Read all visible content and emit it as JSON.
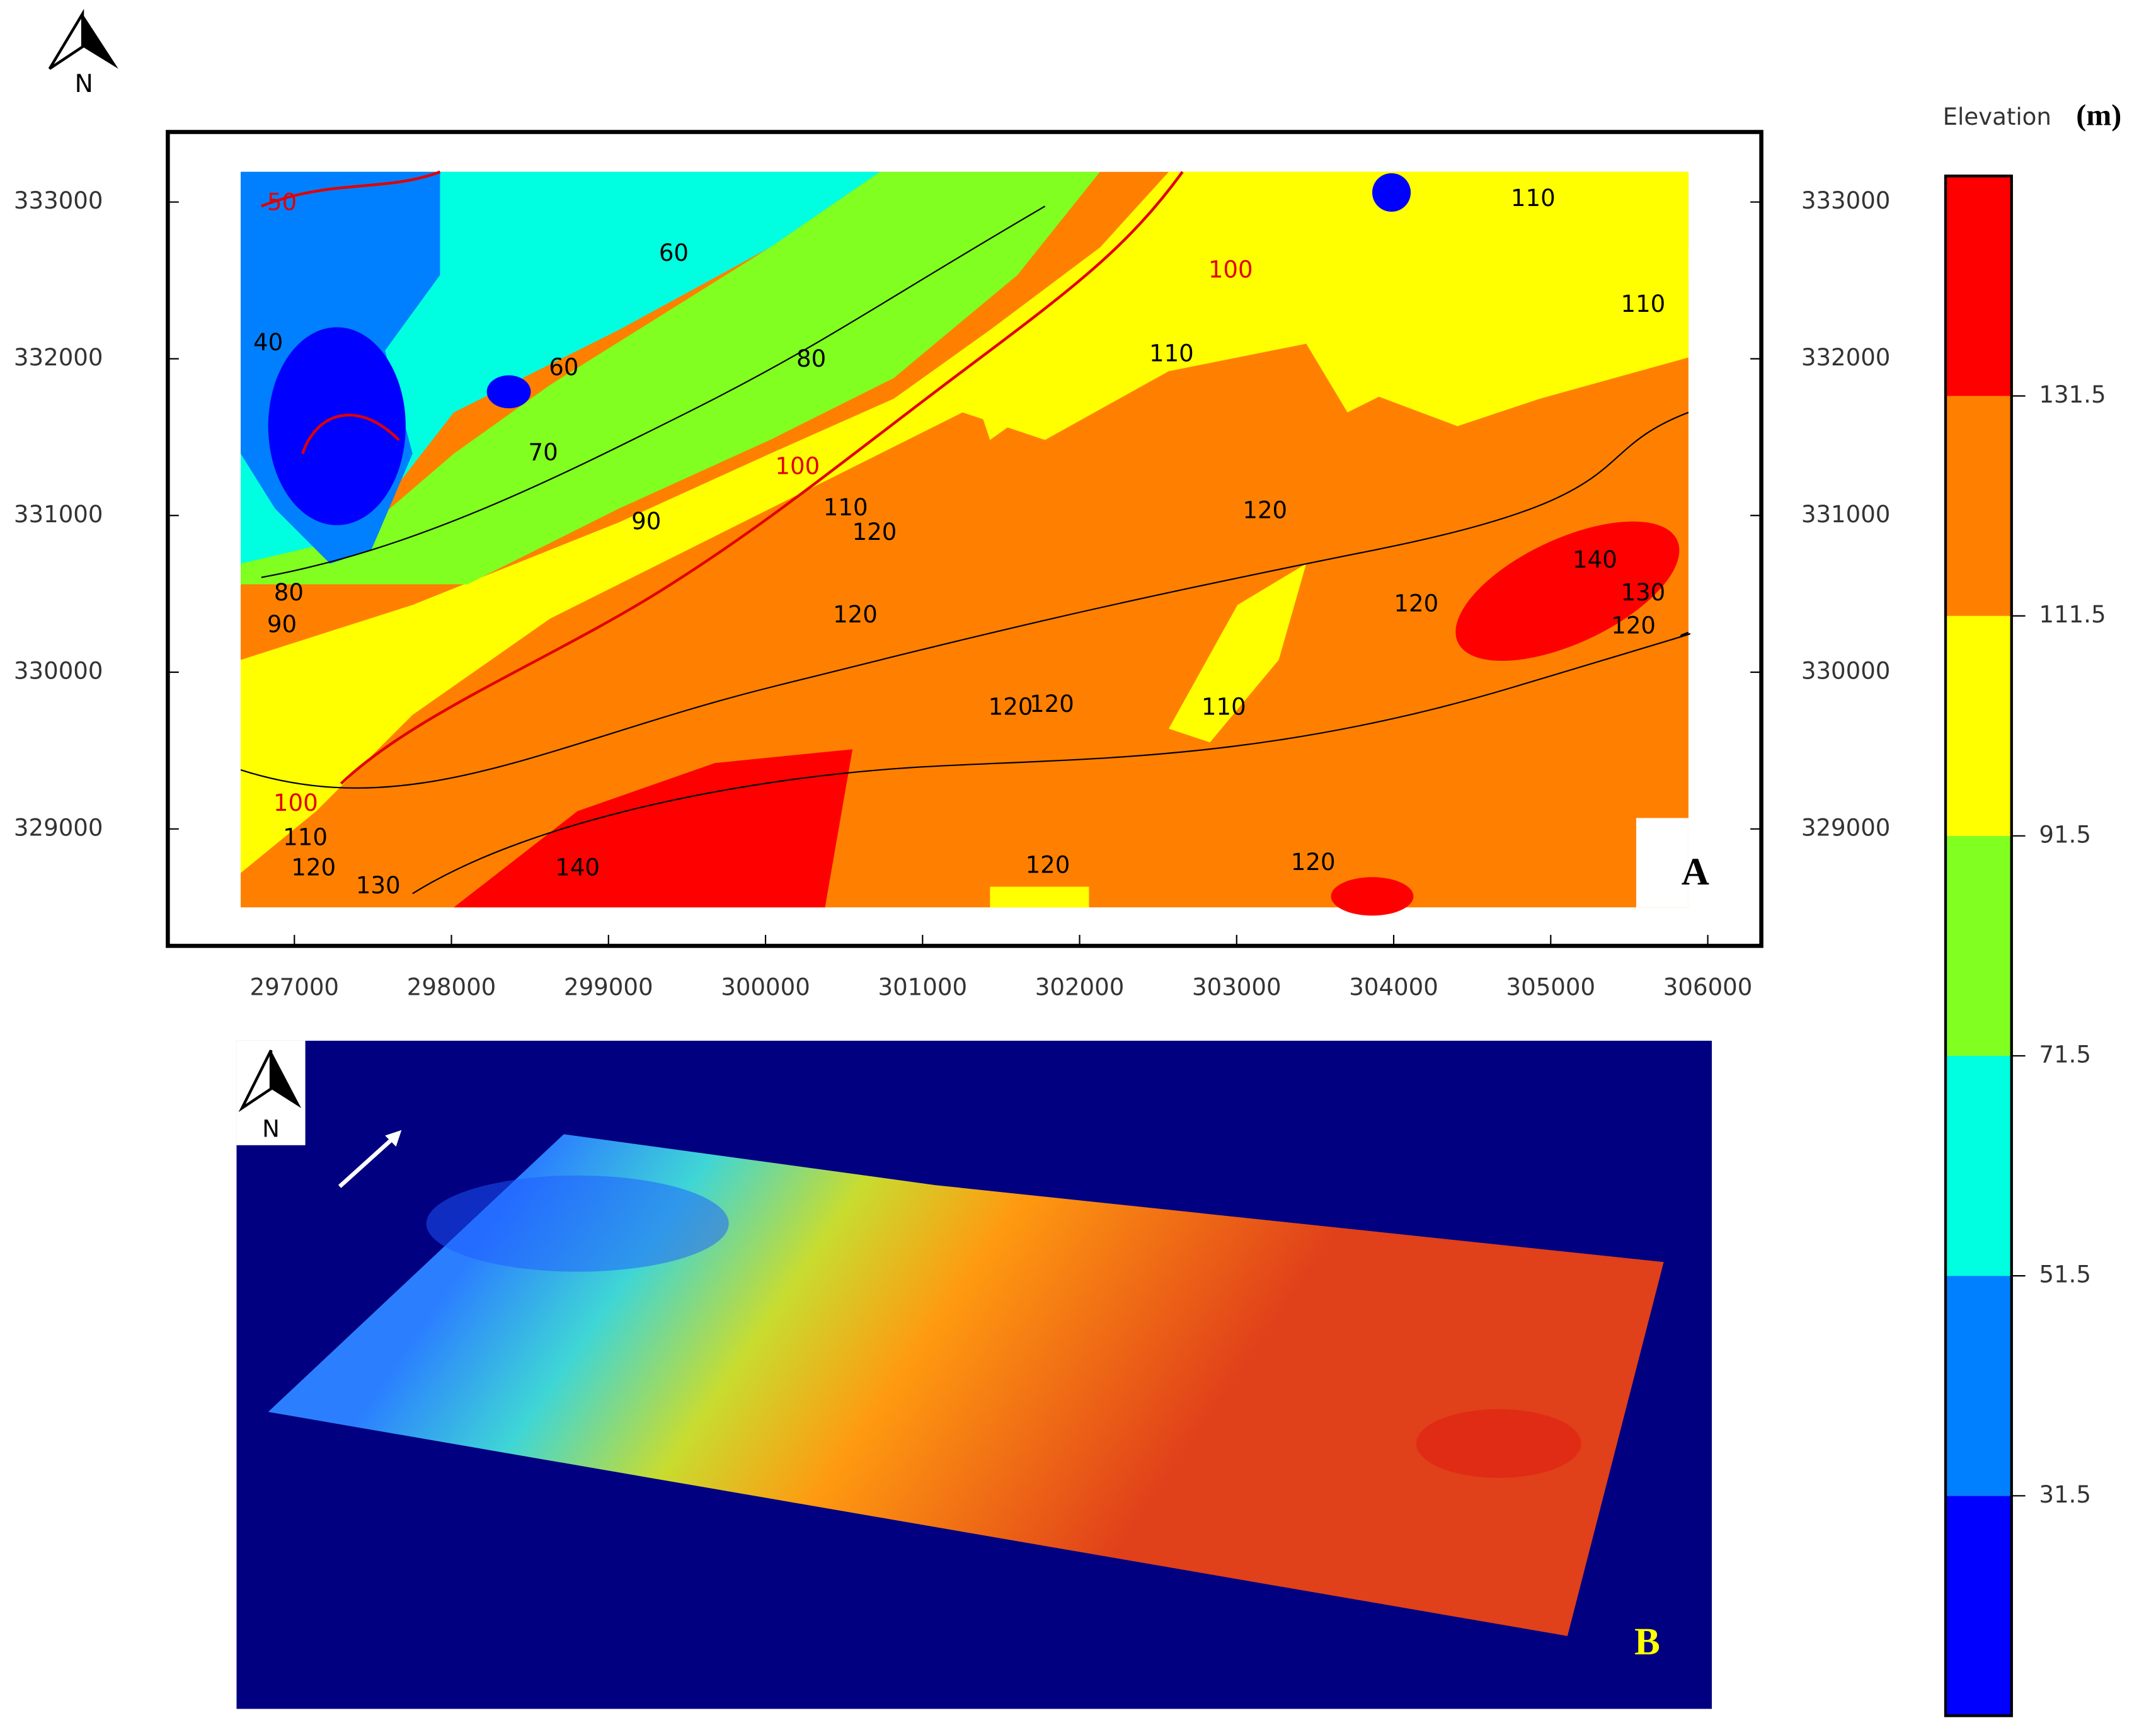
{
  "north_arrow": "N",
  "panel_a": {
    "label": "A",
    "xlim": [
      296194,
      306341
    ],
    "ylim": [
      328254,
      333447
    ],
    "xticks": [
      297000,
      298000,
      299000,
      300000,
      301000,
      302000,
      303000,
      304000,
      305000,
      306000
    ],
    "yticks": [
      329000,
      330000,
      331000,
      332000,
      333000
    ],
    "contour_labels": [
      {
        "text": "50",
        "color": "#e00000"
      },
      {
        "text": "40",
        "color": "#000000"
      },
      {
        "text": "60",
        "color": "#000000"
      },
      {
        "text": "70",
        "color": "#000000"
      },
      {
        "text": "80",
        "color": "#000000"
      },
      {
        "text": "90",
        "color": "#000000"
      },
      {
        "text": "90",
        "color": "#000000"
      },
      {
        "text": "80",
        "color": "#000000"
      },
      {
        "text": "60",
        "color": "#000000"
      },
      {
        "text": "100",
        "color": "#e00000"
      },
      {
        "text": "110",
        "color": "#000000"
      },
      {
        "text": "120",
        "color": "#000000"
      },
      {
        "text": "120",
        "color": "#000000"
      },
      {
        "text": "120",
        "color": "#000000"
      },
      {
        "text": "120",
        "color": "#000000"
      },
      {
        "text": "110",
        "color": "#000000"
      },
      {
        "text": "120",
        "color": "#000000"
      },
      {
        "text": "110",
        "color": "#000000"
      },
      {
        "text": "100",
        "color": "#e00000"
      },
      {
        "text": "110",
        "color": "#000000"
      },
      {
        "text": "110",
        "color": "#000000"
      },
      {
        "text": "140",
        "color": "#000000"
      },
      {
        "text": "130",
        "color": "#000000"
      },
      {
        "text": "120",
        "color": "#000000"
      },
      {
        "text": "120",
        "color": "#000000"
      },
      {
        "text": "100",
        "color": "#e00000"
      },
      {
        "text": "110",
        "color": "#000000"
      },
      {
        "text": "120",
        "color": "#000000"
      },
      {
        "text": "130",
        "color": "#000000"
      },
      {
        "text": "140",
        "color": "#000000"
      },
      {
        "text": "120",
        "color": "#000000"
      },
      {
        "text": "120",
        "color": "#000000"
      }
    ]
  },
  "panel_b": {
    "label": "B",
    "north_arrow": "N"
  },
  "colorbar": {
    "title": "Elevation",
    "unit": "(m)",
    "range": [
      11.5,
      151.5
    ],
    "ticks": [
      31.5,
      51.5,
      71.5,
      91.5,
      111.5,
      131.5
    ],
    "colors": [
      "#0000ff",
      "#0080ff",
      "#00ffe0",
      "#80ff20",
      "#ffff00",
      "#ff8000",
      "#ff0000"
    ]
  }
}
